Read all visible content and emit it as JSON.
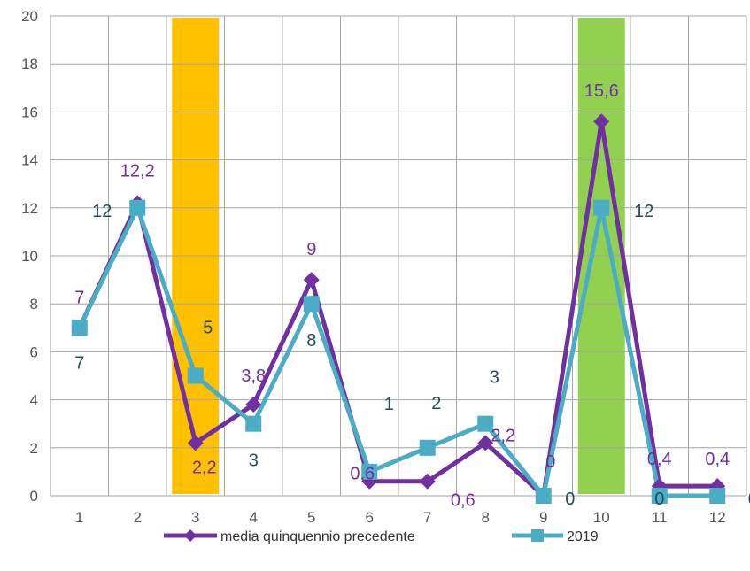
{
  "colors": {
    "series1": "#7030A0",
    "series2": "#4BACC6",
    "series2_label": "#1F4E5A",
    "highlight_orange": "#FFC000",
    "highlight_green": "#92D050",
    "grid": "#A6A6A6"
  },
  "chart_data": {
    "type": "line",
    "title": "",
    "xlabel": "",
    "ylabel": "",
    "x": [
      1,
      2,
      3,
      4,
      5,
      6,
      7,
      8,
      9,
      10,
      11,
      12
    ],
    "ylim": [
      0,
      20
    ],
    "yticks": [
      0,
      2,
      4,
      6,
      8,
      10,
      12,
      14,
      16,
      18,
      20
    ],
    "grid": true,
    "legend_position": "bottom",
    "highlighted_categories": [
      {
        "x": 3,
        "color": "#FFC000"
      },
      {
        "x": 10,
        "color": "#92D050"
      }
    ],
    "series": [
      {
        "name": "media quinquennio precedente",
        "marker": "diamond",
        "color": "#7030A0",
        "values": [
          7,
          12.2,
          2.2,
          3.8,
          9,
          0.6,
          0.6,
          2.2,
          0,
          15.6,
          0.4,
          0.4
        ],
        "labels": [
          "7",
          "12,2",
          "2,2",
          "3,8",
          "9",
          "0,6",
          "0,6",
          "2,2",
          "0",
          "15,6",
          "0,4",
          "0,4"
        ]
      },
      {
        "name": "2019",
        "marker": "square",
        "color": "#4BACC6",
        "values": [
          7,
          12,
          5,
          3,
          8,
          1,
          2,
          3,
          0,
          12,
          0,
          0
        ],
        "labels": [
          "7",
          "12",
          "5",
          "3",
          "8",
          "1",
          "2",
          "3",
          "0",
          "12",
          "0",
          "0"
        ]
      }
    ]
  }
}
